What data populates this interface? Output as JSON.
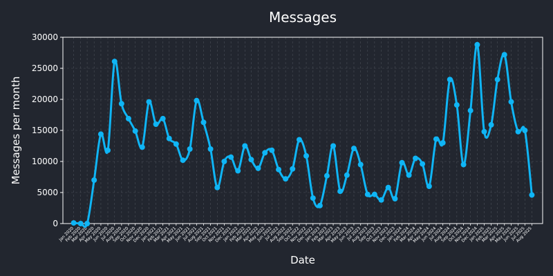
{
  "chart_data": {
    "type": "line",
    "title": "Messages",
    "xlabel": "Date",
    "ylabel": "Messages per month",
    "ylim": [
      0,
      30000
    ],
    "yticks": [
      0,
      5000,
      10000,
      15000,
      20000,
      25000,
      30000
    ],
    "ytick_labels": [
      "0",
      "5000",
      "10000",
      "15000",
      "20000",
      "25000",
      "30000"
    ],
    "grid": true,
    "x_range": [
      "2019-11-14",
      "2025-09-18"
    ],
    "series": [
      {
        "color": "#0fb5f5",
        "x": [
          "2020-01-01",
          "2020-02-01",
          "2020-03-01",
          "2020-04-01",
          "2020-05-01",
          "2020-06-01",
          "2020-07-01",
          "2020-08-01",
          "2020-09-01",
          "2020-10-01",
          "2020-11-01",
          "2020-12-01",
          "2021-01-01",
          "2021-02-01",
          "2021-03-01",
          "2021-04-01",
          "2021-05-01",
          "2021-06-01",
          "2021-07-01",
          "2021-08-01",
          "2021-09-01",
          "2021-10-01",
          "2021-11-01",
          "2021-12-01",
          "2022-01-01",
          "2022-02-01",
          "2022-03-01",
          "2022-04-01",
          "2022-05-01",
          "2022-06-01",
          "2022-07-01",
          "2022-08-01",
          "2022-09-01",
          "2022-10-01",
          "2022-11-01",
          "2022-12-01",
          "2023-01-01",
          "2023-02-01",
          "2023-03-01",
          "2023-04-01",
          "2023-05-01",
          "2023-06-01",
          "2023-07-01",
          "2023-08-01",
          "2023-09-01",
          "2023-10-01",
          "2023-11-01",
          "2023-12-01",
          "2024-01-01",
          "2024-02-01",
          "2024-03-01",
          "2024-04-01",
          "2024-05-01",
          "2024-06-01",
          "2024-07-01",
          "2024-08-01",
          "2024-09-01",
          "2024-10-01",
          "2024-11-01",
          "2024-12-01",
          "2025-01-01",
          "2025-02-01",
          "2025-03-01",
          "2025-04-01",
          "2025-05-01",
          "2025-06-01",
          "2025-07-01",
          "2025-08-01"
        ],
        "values": [
          100,
          0,
          0,
          7000,
          14400,
          11800,
          26100,
          19300,
          16900,
          14900,
          12300,
          19600,
          16000,
          16900,
          13700,
          12800,
          10200,
          12000,
          19800,
          16300,
          12000,
          5800,
          10000,
          10700,
          8500,
          12500,
          10300,
          8900,
          11400,
          11800,
          8700,
          7200,
          8800,
          13500,
          10900,
          4100,
          2900,
          7700,
          12500,
          5200,
          7800,
          12100,
          9500,
          4700,
          4700,
          3800,
          5800,
          4000,
          9800,
          7800,
          10500,
          9600,
          6000,
          13600,
          13000,
          23200,
          19100,
          9500,
          18200,
          28800,
          14800,
          15900,
          23200,
          27200,
          19600,
          14800,
          15000,
          4600
        ]
      }
    ],
    "x_tick_dates": [
      "2020-01-01",
      "2020-02-01",
      "2020-03-01",
      "2020-04-01",
      "2020-05-01",
      "2020-06-01",
      "2020-07-01",
      "2020-08-01",
      "2020-09-01",
      "2020-10-01",
      "2020-11-01",
      "2020-12-01",
      "2021-01-01",
      "2021-02-01",
      "2021-03-01",
      "2021-04-01",
      "2021-05-01",
      "2021-06-01",
      "2021-07-01",
      "2021-08-01",
      "2021-09-01",
      "2021-10-01",
      "2021-11-01",
      "2021-12-01",
      "2022-01-01",
      "2022-02-01",
      "2022-03-01",
      "2022-04-01",
      "2022-05-01",
      "2022-06-01",
      "2022-07-01",
      "2022-08-01",
      "2022-09-01",
      "2022-10-01",
      "2022-11-01",
      "2022-12-01",
      "2023-01-01",
      "2023-02-01",
      "2023-03-01",
      "2023-04-01",
      "2023-05-01",
      "2023-06-01",
      "2023-07-01",
      "2023-08-01",
      "2023-09-01",
      "2023-10-01",
      "2023-11-01",
      "2023-12-01",
      "2024-01-01",
      "2024-02-01",
      "2024-03-01",
      "2024-04-01",
      "2024-05-01",
      "2024-06-01",
      "2024-07-01",
      "2024-08-01",
      "2024-09-01",
      "2024-10-01",
      "2024-11-01",
      "2024-12-01",
      "2025-01-01",
      "2025-02-01",
      "2025-03-01",
      "2025-04-01",
      "2025-05-01",
      "2025-06-01",
      "2025-07-01",
      "2025-08-01"
    ],
    "x_tick_labels": [
      "Jan 2020",
      "Feb 2020",
      "Mar 2020",
      "Apr 2020",
      "May 2020",
      "Jun 2020",
      "Jul 2020",
      "Aug 2020",
      "Sep 2020",
      "Oct 2020",
      "Nov 2020",
      "Dec 2020",
      "Jan 2021",
      "Feb 2021",
      "Mar 2021",
      "Apr 2021",
      "May 2021",
      "Jun 2021",
      "Jul 2021",
      "Aug 2021",
      "Sep 2021",
      "Oct 2021",
      "Nov 2021",
      "Dec 2021",
      "Jan 2022",
      "Feb 2022",
      "Mar 2022",
      "Apr 2022",
      "May 2022",
      "Jun 2022",
      "Jul 2022",
      "Aug 2022",
      "Sep 2022",
      "Oct 2022",
      "Nov 2022",
      "Dec 2022",
      "Jan 2023",
      "Feb 2023",
      "Mar 2023",
      "Apr 2023",
      "May 2023",
      "Jun 2023",
      "Jul 2023",
      "Aug 2023",
      "Sep 2023",
      "Oct 2023",
      "Nov 2023",
      "Dec 2023",
      "Jan 2024",
      "Feb 2024",
      "Mar 2024",
      "Apr 2024",
      "May 2024",
      "Jun 2024",
      "Jul 2024",
      "Aug 2024",
      "Sep 2024",
      "Oct 2024",
      "Nov 2024",
      "Dec 2024",
      "Jan 2025",
      "Feb 2025",
      "Mar 2025",
      "Apr 2025",
      "May 2025",
      "Jun 2025",
      "Jul 2025",
      "Aug 2025"
    ]
  }
}
